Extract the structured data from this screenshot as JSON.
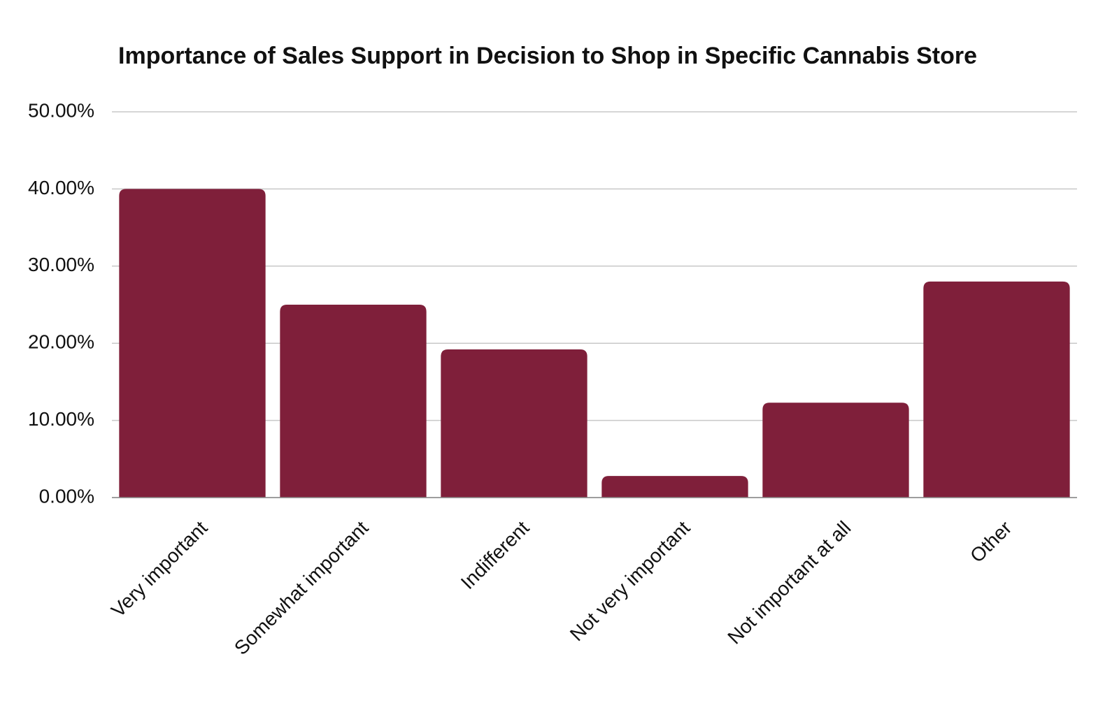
{
  "chart_data": {
    "type": "bar",
    "title": "Importance of Sales Support in Decision to Shop in Specific Cannabis Store",
    "categories": [
      "Very important",
      "Somewhat important",
      "Indifferent",
      "Not very important",
      "Not important at all",
      "Other"
    ],
    "values": [
      40.0,
      25.0,
      19.2,
      2.8,
      12.3,
      28.0
    ],
    "color": "#7f1f3a",
    "ylim": [
      0,
      50
    ],
    "yticks": [
      {
        "value": 0,
        "label": "0.00%"
      },
      {
        "value": 10,
        "label": "10.00%"
      },
      {
        "value": 20,
        "label": "20.00%"
      },
      {
        "value": 30,
        "label": "30.00%"
      },
      {
        "value": 40,
        "label": "40.00%"
      },
      {
        "value": 50,
        "label": "50.00%"
      }
    ],
    "grid": true
  }
}
